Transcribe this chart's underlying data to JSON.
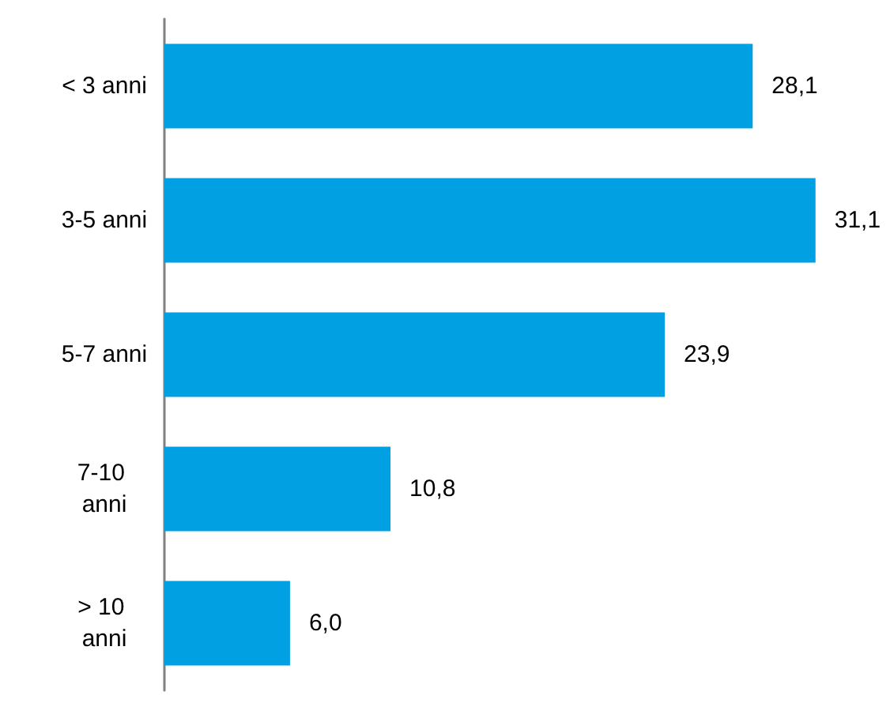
{
  "chart_data": {
    "type": "bar",
    "orientation": "horizontal",
    "categories": [
      "< 3 anni",
      "3-5 anni",
      "5-7 anni",
      "7-10 anni",
      "> 10 anni"
    ],
    "values": [
      28.1,
      31.1,
      23.9,
      10.8,
      6.0
    ],
    "color": "#00a0e3",
    "value_labels": [
      "28,1",
      "31,1",
      "23,9",
      "10,8",
      "6,0"
    ]
  }
}
